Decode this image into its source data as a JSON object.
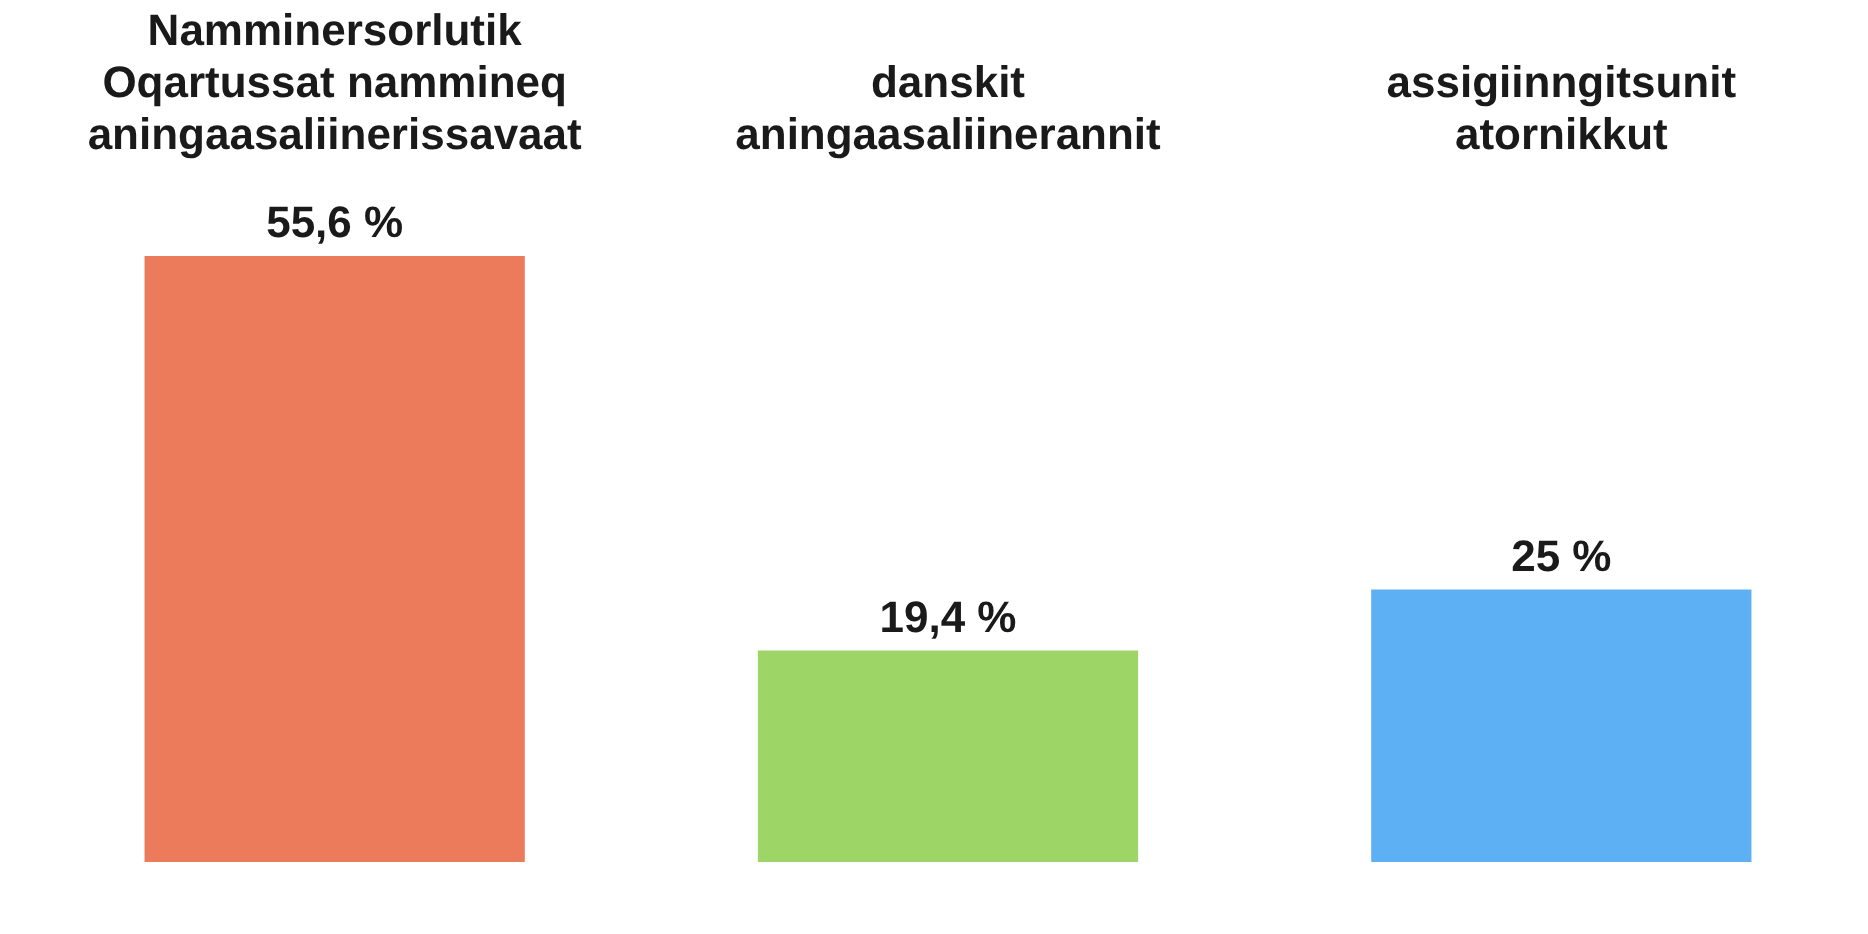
{
  "chart_data": {
    "type": "bar",
    "categories": [
      "Namminersorlutik Oqartussat nammineq aningaasaliinerissavaat",
      "danskit aningaasaliinerannit",
      "assigiinngitsunit atornikkut"
    ],
    "values": [
      55.6,
      19.4,
      25
    ],
    "value_labels": [
      "55,6 %",
      "19,4 %",
      "25 %"
    ],
    "colors": [
      "#ec7b5c",
      "#9dd667",
      "#5eb0f5"
    ]
  }
}
